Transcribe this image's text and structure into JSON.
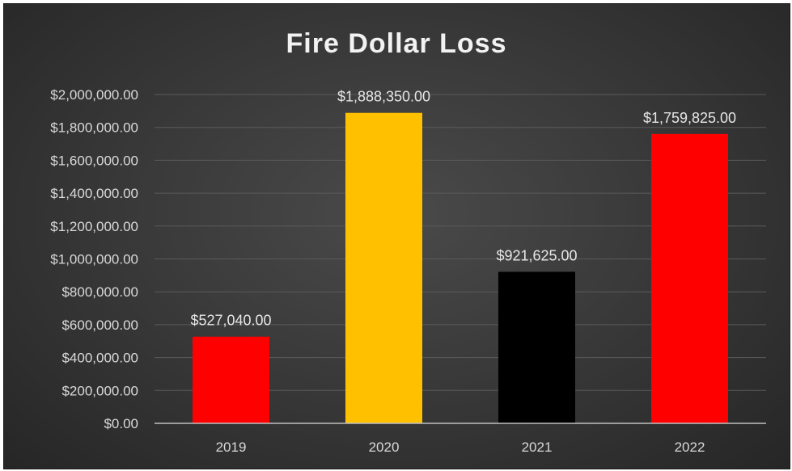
{
  "chart_data": {
    "type": "bar",
    "title": "Fire Dollar Loss",
    "categories": [
      "2019",
      "2020",
      "2021",
      "2022"
    ],
    "values": [
      527040,
      1888350,
      921625,
      1759825
    ],
    "data_labels": [
      "$527,040.00",
      "$1,888,350.00",
      "$921,625.00",
      "$1,759,825.00"
    ],
    "bar_colors": [
      "#ff0000",
      "#ffc000",
      "#000000",
      "#ff0000"
    ],
    "ylim": [
      0,
      2000000
    ],
    "y_ticks": [
      0,
      200000,
      400000,
      600000,
      800000,
      1000000,
      1200000,
      1400000,
      1600000,
      1800000,
      2000000
    ],
    "y_tick_labels": [
      "$0.00",
      "$200,000.00",
      "$400,000.00",
      "$600,000.00",
      "$800,000.00",
      "$1,000,000.00",
      "$1,200,000.00",
      "$1,400,000.00",
      "$1,600,000.00",
      "$1,800,000.00",
      "$2,000,000.00"
    ],
    "grid": true,
    "legend": "none",
    "background": "#3a3a3a"
  }
}
